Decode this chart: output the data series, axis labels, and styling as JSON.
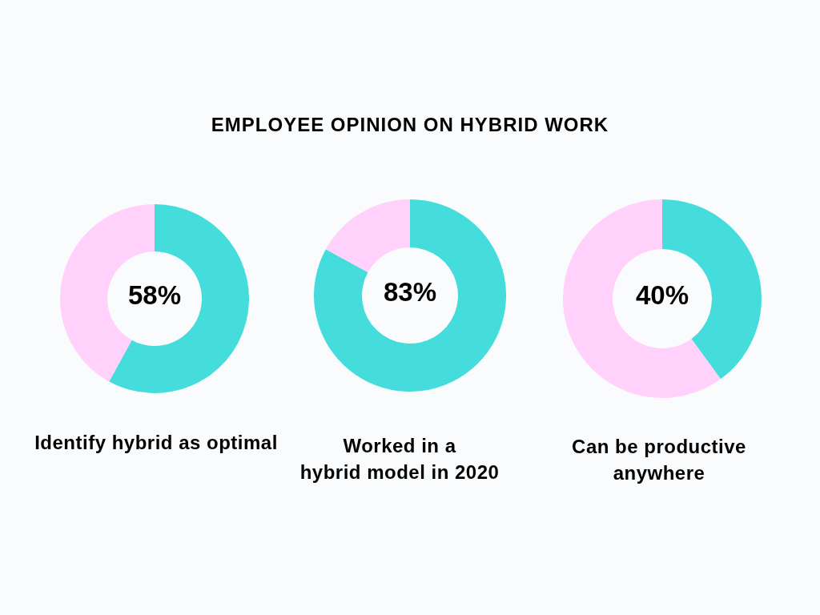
{
  "chart_data": [
    {
      "type": "donut",
      "categories": [
        null,
        null
      ],
      "values": [
        58,
        42
      ],
      "colors": [
        "#45dcdc",
        "#ffd1fb"
      ],
      "value_labels": [
        "58%",
        null
      ],
      "xlabel": "Identify hybrid as optimal"
    },
    {
      "type": "donut",
      "title": "EMPLOYEE OPINION ON HYBRID WORK",
      "categories": [
        null,
        null
      ],
      "values": [
        83,
        17
      ],
      "colors": [
        "#45dcdc",
        "#ffd1fb"
      ],
      "value_labels": [
        "83%",
        null
      ],
      "xlabel": "Worked in a\nhybrid model in 2020"
    },
    {
      "type": "donut",
      "categories": [
        null,
        null
      ],
      "values": [
        40,
        60
      ],
      "colors": [
        "#45dcdc",
        "#ffd1fb"
      ],
      "value_labels": [
        "40%",
        null
      ],
      "xlabel": "Can be productive\nanywhere"
    }
  ]
}
